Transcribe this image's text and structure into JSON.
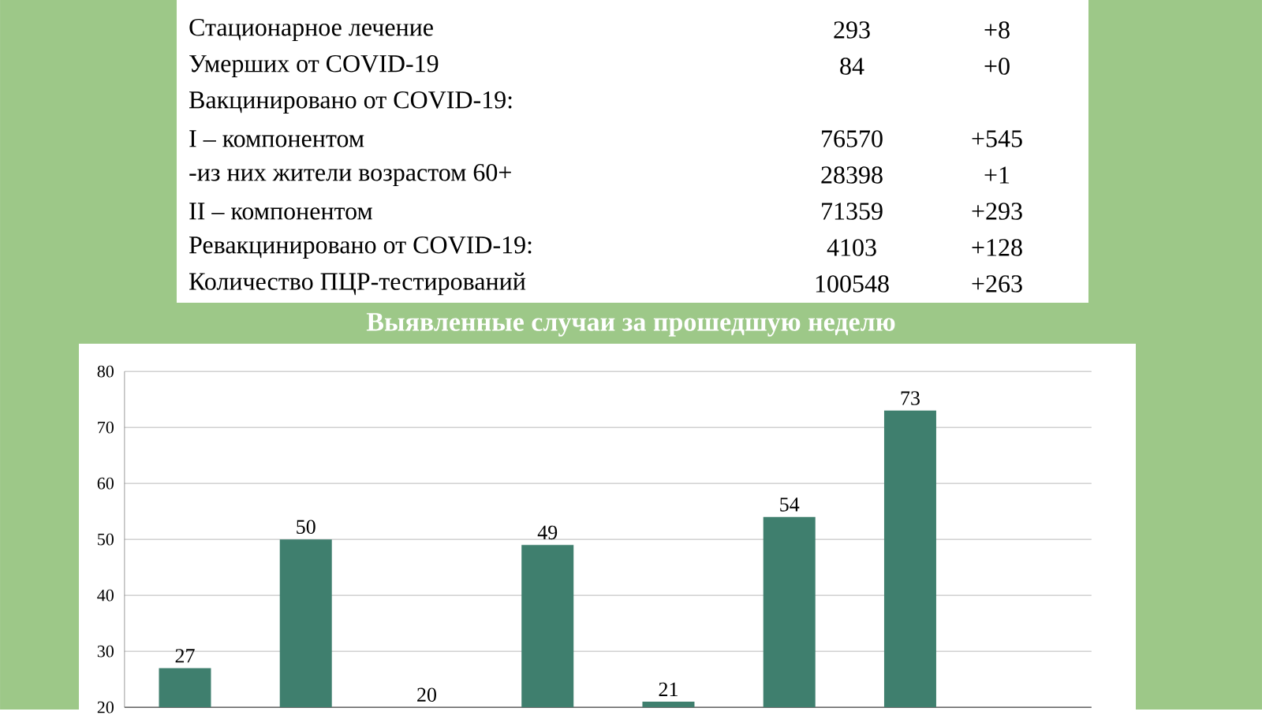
{
  "chart_data": {
    "type": "bar",
    "title": "Выявленные случаи за прошедшую неделю",
    "annotations": [
      "Стационарное лечение",
      "293",
      "+8",
      "Умерших от COVID-19",
      "84",
      "+0",
      "Вакцинировано от COVID-19:",
      "I – компонентом",
      "76570",
      "+545",
      "-из них жители возрастом 60+",
      "28398",
      "+1",
      "II – компонентом",
      "71359",
      "+293",
      "Ревакцинировано от COVID-19:",
      "4103",
      "+128",
      "Количество ПЦР-тестирований",
      "100548",
      "+263"
    ],
    "categories": [
      null,
      null,
      null,
      null,
      null,
      null,
      null,
      null
    ],
    "values": [
      27,
      50,
      20,
      49,
      21,
      54,
      73,
      null
    ],
    "color": "#3f7f6e",
    "ylim": [
      20,
      80
    ],
    "yticks": [
      20,
      30,
      40,
      50,
      60,
      70,
      80
    ],
    "grid": "y",
    "data_labels": true,
    "tick_labels": "y"
  }
}
